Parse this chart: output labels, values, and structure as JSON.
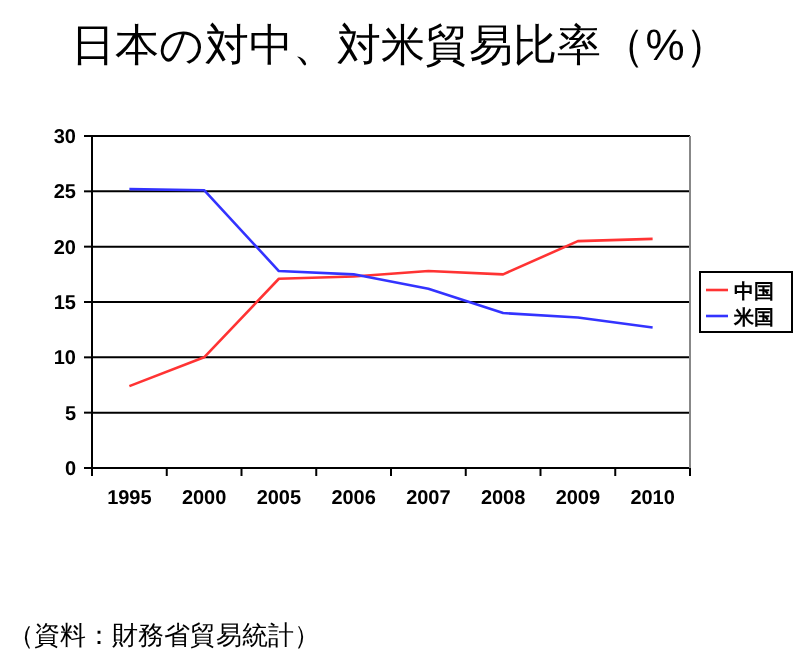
{
  "chart_data": {
    "type": "line",
    "title": "日本の対中、対米貿易比率（%）",
    "categories": [
      "1995",
      "2000",
      "2005",
      "2006",
      "2007",
      "2008",
      "2009",
      "2010"
    ],
    "series": [
      {
        "name": "中国",
        "color": "#ff3333",
        "values": [
          7.4,
          10,
          17.1,
          17.3,
          17.8,
          17.5,
          20.5,
          20.7
        ]
      },
      {
        "name": "米国",
        "color": "#3333ff",
        "values": [
          25.2,
          25.1,
          17.8,
          17.5,
          16.2,
          14.0,
          13.6,
          12.7
        ]
      }
    ],
    "ylim": [
      0,
      30
    ],
    "yticks": [
      0,
      5,
      10,
      15,
      20,
      25,
      30
    ],
    "grid": "y",
    "legend": "right",
    "marker": "none",
    "line_style": "solid",
    "annotations": [
      "（資料：財務省貿易統計）"
    ]
  }
}
